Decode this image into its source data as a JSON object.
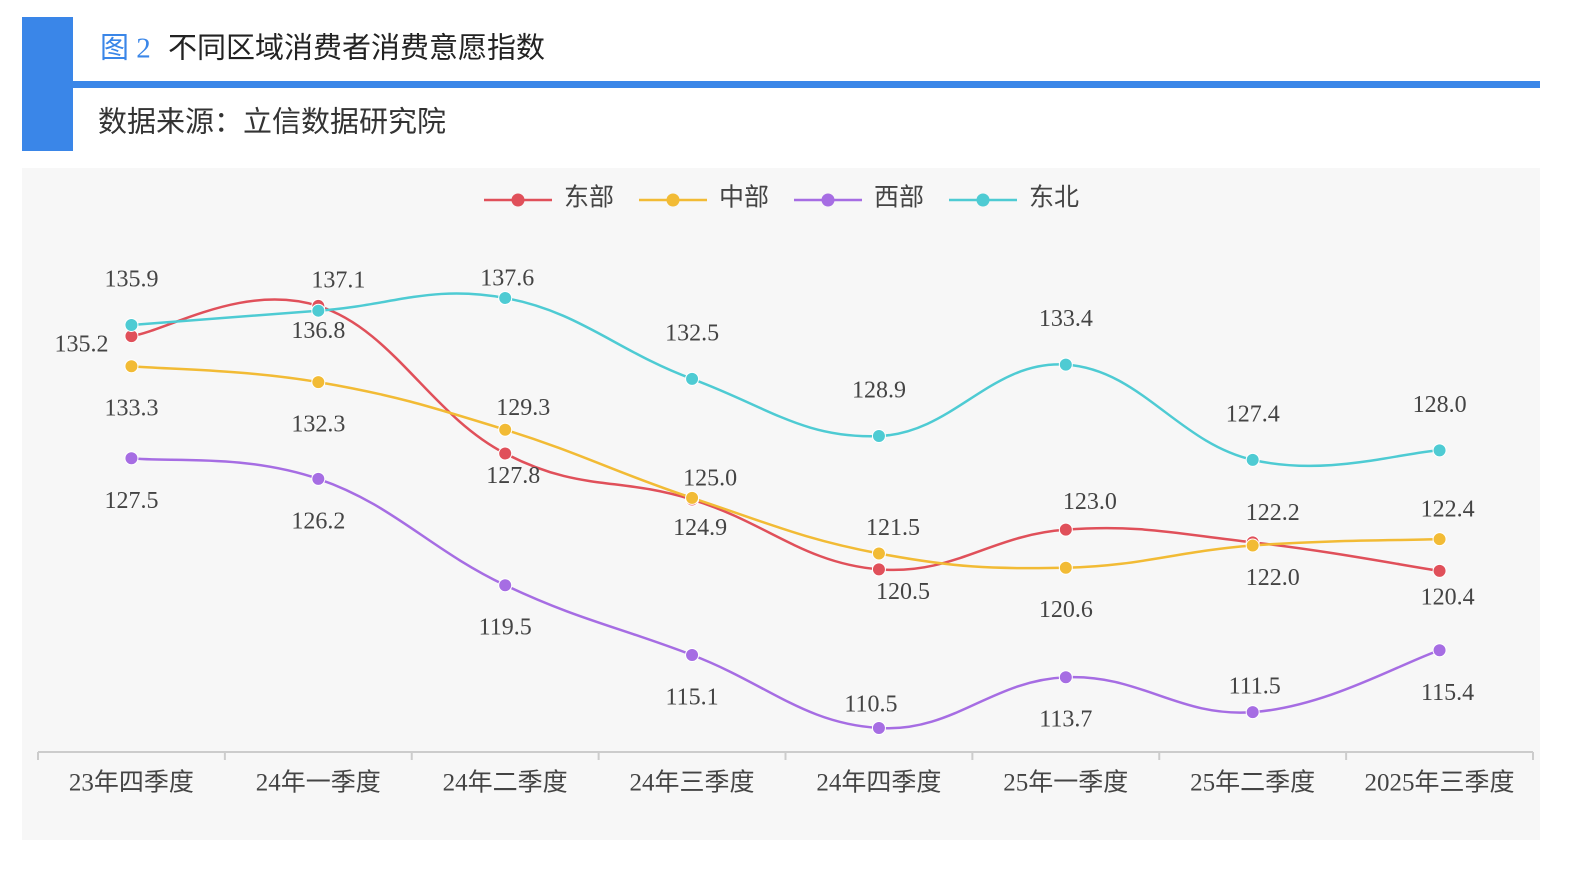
{
  "header": {
    "figure_number": "图 2",
    "title": "不同区域消费者消费意愿指数",
    "source": "数据来源：立信数据研究院"
  },
  "chart_data": {
    "type": "line",
    "categories": [
      "23年四季度",
      "24年一季度",
      "24年二季度",
      "24年三季度",
      "24年四季度",
      "25年一季度",
      "25年二季度",
      "2025年三季度"
    ],
    "series": [
      {
        "name": "东部",
        "color": "#e0505a",
        "values": [
          135.2,
          137.1,
          127.8,
          124.9,
          120.5,
          123.0,
          122.2,
          120.4
        ],
        "value_labels": [
          "135.2",
          "137.1",
          "127.8",
          "124.9",
          "120.5",
          "123.0",
          "122.2",
          "120.4"
        ]
      },
      {
        "name": "中部",
        "color": "#f2bb35",
        "values": [
          133.3,
          132.3,
          129.3,
          125.0,
          121.5,
          120.6,
          122.0,
          122.4
        ],
        "value_labels": [
          "133.3",
          "132.3",
          "129.3",
          "125.0",
          "121.5",
          "120.6",
          "122.0",
          "122.4"
        ]
      },
      {
        "name": "西部",
        "color": "#a66de3",
        "values": [
          127.5,
          126.2,
          119.5,
          115.1,
          110.5,
          113.7,
          111.5,
          115.4
        ],
        "value_labels": [
          "127.5",
          "126.2",
          "119.5",
          "115.1",
          "110.5",
          "113.7",
          "111.5",
          "115.4"
        ]
      },
      {
        "name": "东北",
        "color": "#4ecbd3",
        "values": [
          135.9,
          136.8,
          137.6,
          132.5,
          128.9,
          133.4,
          127.4,
          128.0
        ],
        "value_labels": [
          "135.9",
          "136.8",
          "137.6",
          "132.5",
          "128.9",
          "133.4",
          "127.4",
          "128.0"
        ]
      }
    ],
    "legend": "top",
    "smooth": true
  }
}
